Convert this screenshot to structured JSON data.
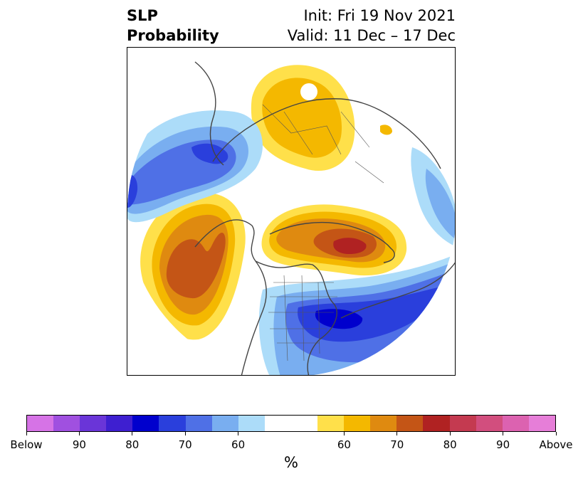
{
  "header": {
    "title_line1": "SLP",
    "title_line2": "Probability",
    "init": "Init: Fri 19 Nov 2021",
    "valid": "Valid: 11 Dec – 17 Dec"
  },
  "colorbar": {
    "unit": "%",
    "colors": [
      "#d673e6",
      "#a050e0",
      "#6a35d8",
      "#3e1fd0",
      "#0000cd",
      "#2a3fdc",
      "#4f70e6",
      "#79aef0",
      "#acdcf9",
      "#ffffff",
      "#ffffff",
      "#ffe04a",
      "#f4b800",
      "#df8a10",
      "#c45516",
      "#b02222",
      "#c43a50",
      "#d24e7e",
      "#dc62b0",
      "#e67ed8"
    ],
    "tick_labels": [
      "Below",
      "90",
      "80",
      "70",
      "60",
      "60",
      "70",
      "80",
      "90",
      "Above"
    ]
  }
}
